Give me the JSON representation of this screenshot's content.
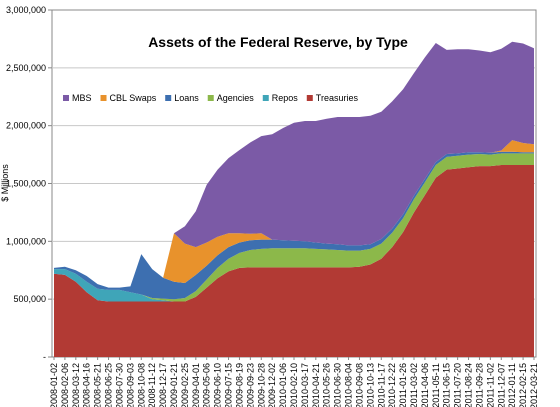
{
  "chart_data": {
    "type": "area",
    "stacked": true,
    "title": "Assets of the Federal Reserve, by Type",
    "ylabel": "$ Millions",
    "xlabel": "",
    "ylim": [
      0,
      3000000
    ],
    "yticks": [
      0,
      500000,
      1000000,
      1500000,
      2000000,
      2500000,
      3000000
    ],
    "ytick_labels": [
      "-",
      "500,000",
      "1,000,000",
      "1,500,000",
      "2,000,000",
      "2,500,000",
      "3,000,000"
    ],
    "grid": "horizontal",
    "legend_position": "top-left",
    "x": [
      "2008-01-02",
      "2008-02-06",
      "2008-03-12",
      "2008-04-16",
      "2008-05-21",
      "2008-06-25",
      "2008-07-30",
      "2008-09-03",
      "2008-10-08",
      "2008-11-12",
      "2008-12-17",
      "2009-01-21",
      "2009-02-25",
      "2009-04-01",
      "2009-05-06",
      "2009-06-10",
      "2009-07-15",
      "2009-08-19",
      "2009-09-23",
      "2009-10-28",
      "2009-12-02",
      "2010-01-06",
      "2010-02-10",
      "2010-03-17",
      "2010-04-21",
      "2010-05-26",
      "2010-06-30",
      "2010-08-04",
      "2010-09-08",
      "2010-10-13",
      "2010-11-17",
      "2010-12-22",
      "2011-01-26",
      "2011-03-02",
      "2011-04-06",
      "2011-05-11",
      "2011-06-15",
      "2011-07-20",
      "2011-08-24",
      "2011-09-28",
      "2011-11-02",
      "2011-12-07",
      "2012-01-11",
      "2012-02-15",
      "2012-03-21"
    ],
    "legend": [
      {
        "name": "MBS",
        "color": "#7b5aa6"
      },
      {
        "name": "CBL Swaps",
        "color": "#e8922c"
      },
      {
        "name": "Loans",
        "color": "#3d6fb0"
      },
      {
        "name": "Agencies",
        "color": "#8cb84a"
      },
      {
        "name": "Repos",
        "color": "#3fa5b8"
      },
      {
        "name": "Treasuries",
        "color": "#b23a34"
      }
    ],
    "series": [
      {
        "name": "Treasuries",
        "color": "#b23a34",
        "values": [
          720000,
          710000,
          650000,
          560000,
          490000,
          480000,
          480000,
          480000,
          480000,
          480000,
          480000,
          480000,
          480000,
          520000,
          600000,
          680000,
          740000,
          770000,
          775000,
          775000,
          775000,
          775000,
          775000,
          775000,
          775000,
          775000,
          775000,
          775000,
          780000,
          800000,
          850000,
          950000,
          1080000,
          1250000,
          1400000,
          1550000,
          1620000,
          1630000,
          1640000,
          1650000,
          1650000,
          1660000,
          1660000,
          1660000,
          1660000
        ]
      },
      {
        "name": "Repos",
        "color": "#3fa5b8",
        "values": [
          40000,
          50000,
          70000,
          90000,
          100000,
          100000,
          100000,
          80000,
          60000,
          20000,
          10000,
          0,
          0,
          0,
          0,
          0,
          0,
          0,
          0,
          0,
          0,
          0,
          0,
          0,
          0,
          0,
          0,
          0,
          0,
          0,
          0,
          0,
          0,
          0,
          0,
          0,
          0,
          0,
          0,
          0,
          0,
          0,
          0,
          0,
          0
        ]
      },
      {
        "name": "Agencies",
        "color": "#8cb84a",
        "values": [
          0,
          0,
          0,
          0,
          0,
          0,
          0,
          0,
          0,
          10000,
          15000,
          20000,
          30000,
          50000,
          70000,
          90000,
          110000,
          130000,
          150000,
          160000,
          165000,
          165000,
          165000,
          165000,
          160000,
          155000,
          150000,
          145000,
          140000,
          135000,
          130000,
          125000,
          120000,
          115000,
          110000,
          110000,
          110000,
          110000,
          110000,
          105000,
          100000,
          100000,
          100000,
          100000,
          100000
        ]
      },
      {
        "name": "Loans",
        "color": "#3d6fb0",
        "values": [
          10000,
          20000,
          30000,
          50000,
          40000,
          20000,
          20000,
          50000,
          350000,
          250000,
          180000,
          150000,
          130000,
          140000,
          120000,
          110000,
          100000,
          90000,
          85000,
          80000,
          75000,
          70000,
          65000,
          60000,
          55000,
          50000,
          50000,
          45000,
          45000,
          40000,
          40000,
          35000,
          35000,
          30000,
          30000,
          25000,
          25000,
          20000,
          20000,
          15000,
          15000,
          15000,
          15000,
          10000,
          10000
        ]
      },
      {
        "name": "CBL Swaps",
        "color": "#e8922c",
        "values": [
          0,
          0,
          0,
          0,
          0,
          0,
          0,
          0,
          0,
          0,
          0,
          420000,
          340000,
          240000,
          200000,
          160000,
          120000,
          80000,
          55000,
          55000,
          0,
          0,
          0,
          0,
          0,
          0,
          0,
          0,
          0,
          0,
          0,
          0,
          0,
          0,
          0,
          0,
          0,
          0,
          0,
          0,
          0,
          10000,
          100000,
          80000,
          70000
        ]
      },
      {
        "name": "MBS",
        "color": "#7b5aa6",
        "values": [
          0,
          0,
          0,
          0,
          0,
          0,
          0,
          0,
          0,
          0,
          0,
          0,
          150000,
          310000,
          500000,
          580000,
          650000,
          720000,
          790000,
          840000,
          910000,
          970000,
          1020000,
          1040000,
          1050000,
          1080000,
          1100000,
          1110000,
          1110000,
          1110000,
          1100000,
          1100000,
          1080000,
          1060000,
          1050000,
          1030000,
          900000,
          900000,
          890000,
          880000,
          870000,
          880000,
          850000,
          860000,
          830000
        ]
      }
    ]
  }
}
